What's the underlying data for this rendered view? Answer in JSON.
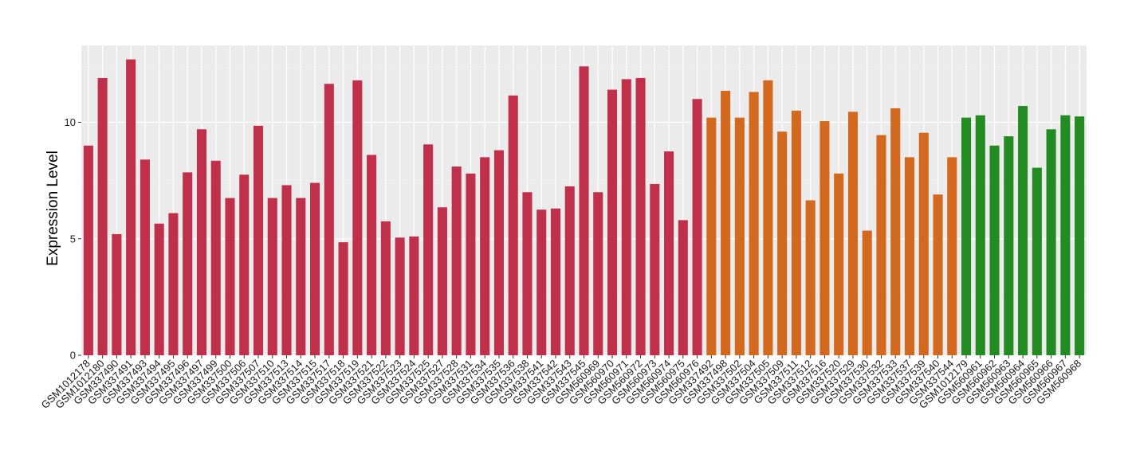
{
  "chart_data": {
    "type": "bar",
    "title": "",
    "xlabel": "",
    "ylabel": "Expression Level",
    "ylim": [
      0,
      13.3
    ],
    "yticks": [
      0,
      5,
      10
    ],
    "grid": true,
    "legend": "none",
    "colors": {
      "group1": "#c0304a",
      "group2": "#d2691e",
      "group3": "#228b22",
      "panel": "#ebebeb",
      "grid_major": "#ffffff"
    },
    "categories": [
      "GSM1012178",
      "GSM1012180",
      "GSM337490",
      "GSM337491",
      "GSM337493",
      "GSM337494",
      "GSM337495",
      "GSM337496",
      "GSM337497",
      "GSM337499",
      "GSM337500",
      "GSM337506",
      "GSM337507",
      "GSM337510",
      "GSM337513",
      "GSM337514",
      "GSM337515",
      "GSM337517",
      "GSM337518",
      "GSM337519",
      "GSM337521",
      "GSM337522",
      "GSM337523",
      "GSM337524",
      "GSM337525",
      "GSM337527",
      "GSM337528",
      "GSM337531",
      "GSM337534",
      "GSM337535",
      "GSM337536",
      "GSM337538",
      "GSM337541",
      "GSM337542",
      "GSM337543",
      "GSM337545",
      "GSM560969",
      "GSM560970",
      "GSM560971",
      "GSM560972",
      "GSM560973",
      "GSM560974",
      "GSM560975",
      "GSM560976",
      "GSM337492",
      "GSM337498",
      "GSM337502",
      "GSM337504",
      "GSM337505",
      "GSM337509",
      "GSM337511",
      "GSM337512",
      "GSM337516",
      "GSM337520",
      "GSM337529",
      "GSM337530",
      "GSM337532",
      "GSM337533",
      "GSM337537",
      "GSM337539",
      "GSM337540",
      "GSM337544",
      "GSM1012179",
      "GSM560961",
      "GSM560962",
      "GSM560963",
      "GSM560964",
      "GSM560965",
      "GSM560966",
      "GSM560967",
      "GSM560968"
    ],
    "values": [
      9.0,
      11.9,
      5.2,
      12.7,
      8.4,
      5.65,
      6.1,
      7.85,
      9.7,
      8.35,
      6.75,
      7.75,
      9.85,
      6.75,
      7.3,
      6.75,
      7.4,
      11.65,
      4.85,
      11.8,
      8.6,
      5.75,
      5.05,
      5.1,
      9.05,
      6.35,
      8.1,
      7.8,
      8.5,
      8.8,
      11.15,
      7.0,
      6.25,
      6.3,
      7.25,
      12.4,
      7.0,
      11.4,
      11.85,
      11.9,
      7.35,
      8.75,
      5.8,
      11.0,
      10.2,
      11.35,
      10.2,
      11.3,
      11.8,
      9.6,
      10.5,
      6.65,
      10.05,
      7.8,
      10.45,
      5.35,
      9.45,
      10.6,
      8.5,
      9.55,
      6.9,
      8.5,
      10.2,
      10.3,
      9.0,
      9.4,
      10.7,
      8.05,
      9.7,
      10.3,
      10.25
    ],
    "groups": [
      1,
      1,
      1,
      1,
      1,
      1,
      1,
      1,
      1,
      1,
      1,
      1,
      1,
      1,
      1,
      1,
      1,
      1,
      1,
      1,
      1,
      1,
      1,
      1,
      1,
      1,
      1,
      1,
      1,
      1,
      1,
      1,
      1,
      1,
      1,
      1,
      1,
      1,
      1,
      1,
      1,
      1,
      1,
      1,
      2,
      2,
      2,
      2,
      2,
      2,
      2,
      2,
      2,
      2,
      2,
      2,
      2,
      2,
      2,
      2,
      2,
      2,
      3,
      3,
      3,
      3,
      3,
      3,
      3,
      3,
      3
    ]
  }
}
